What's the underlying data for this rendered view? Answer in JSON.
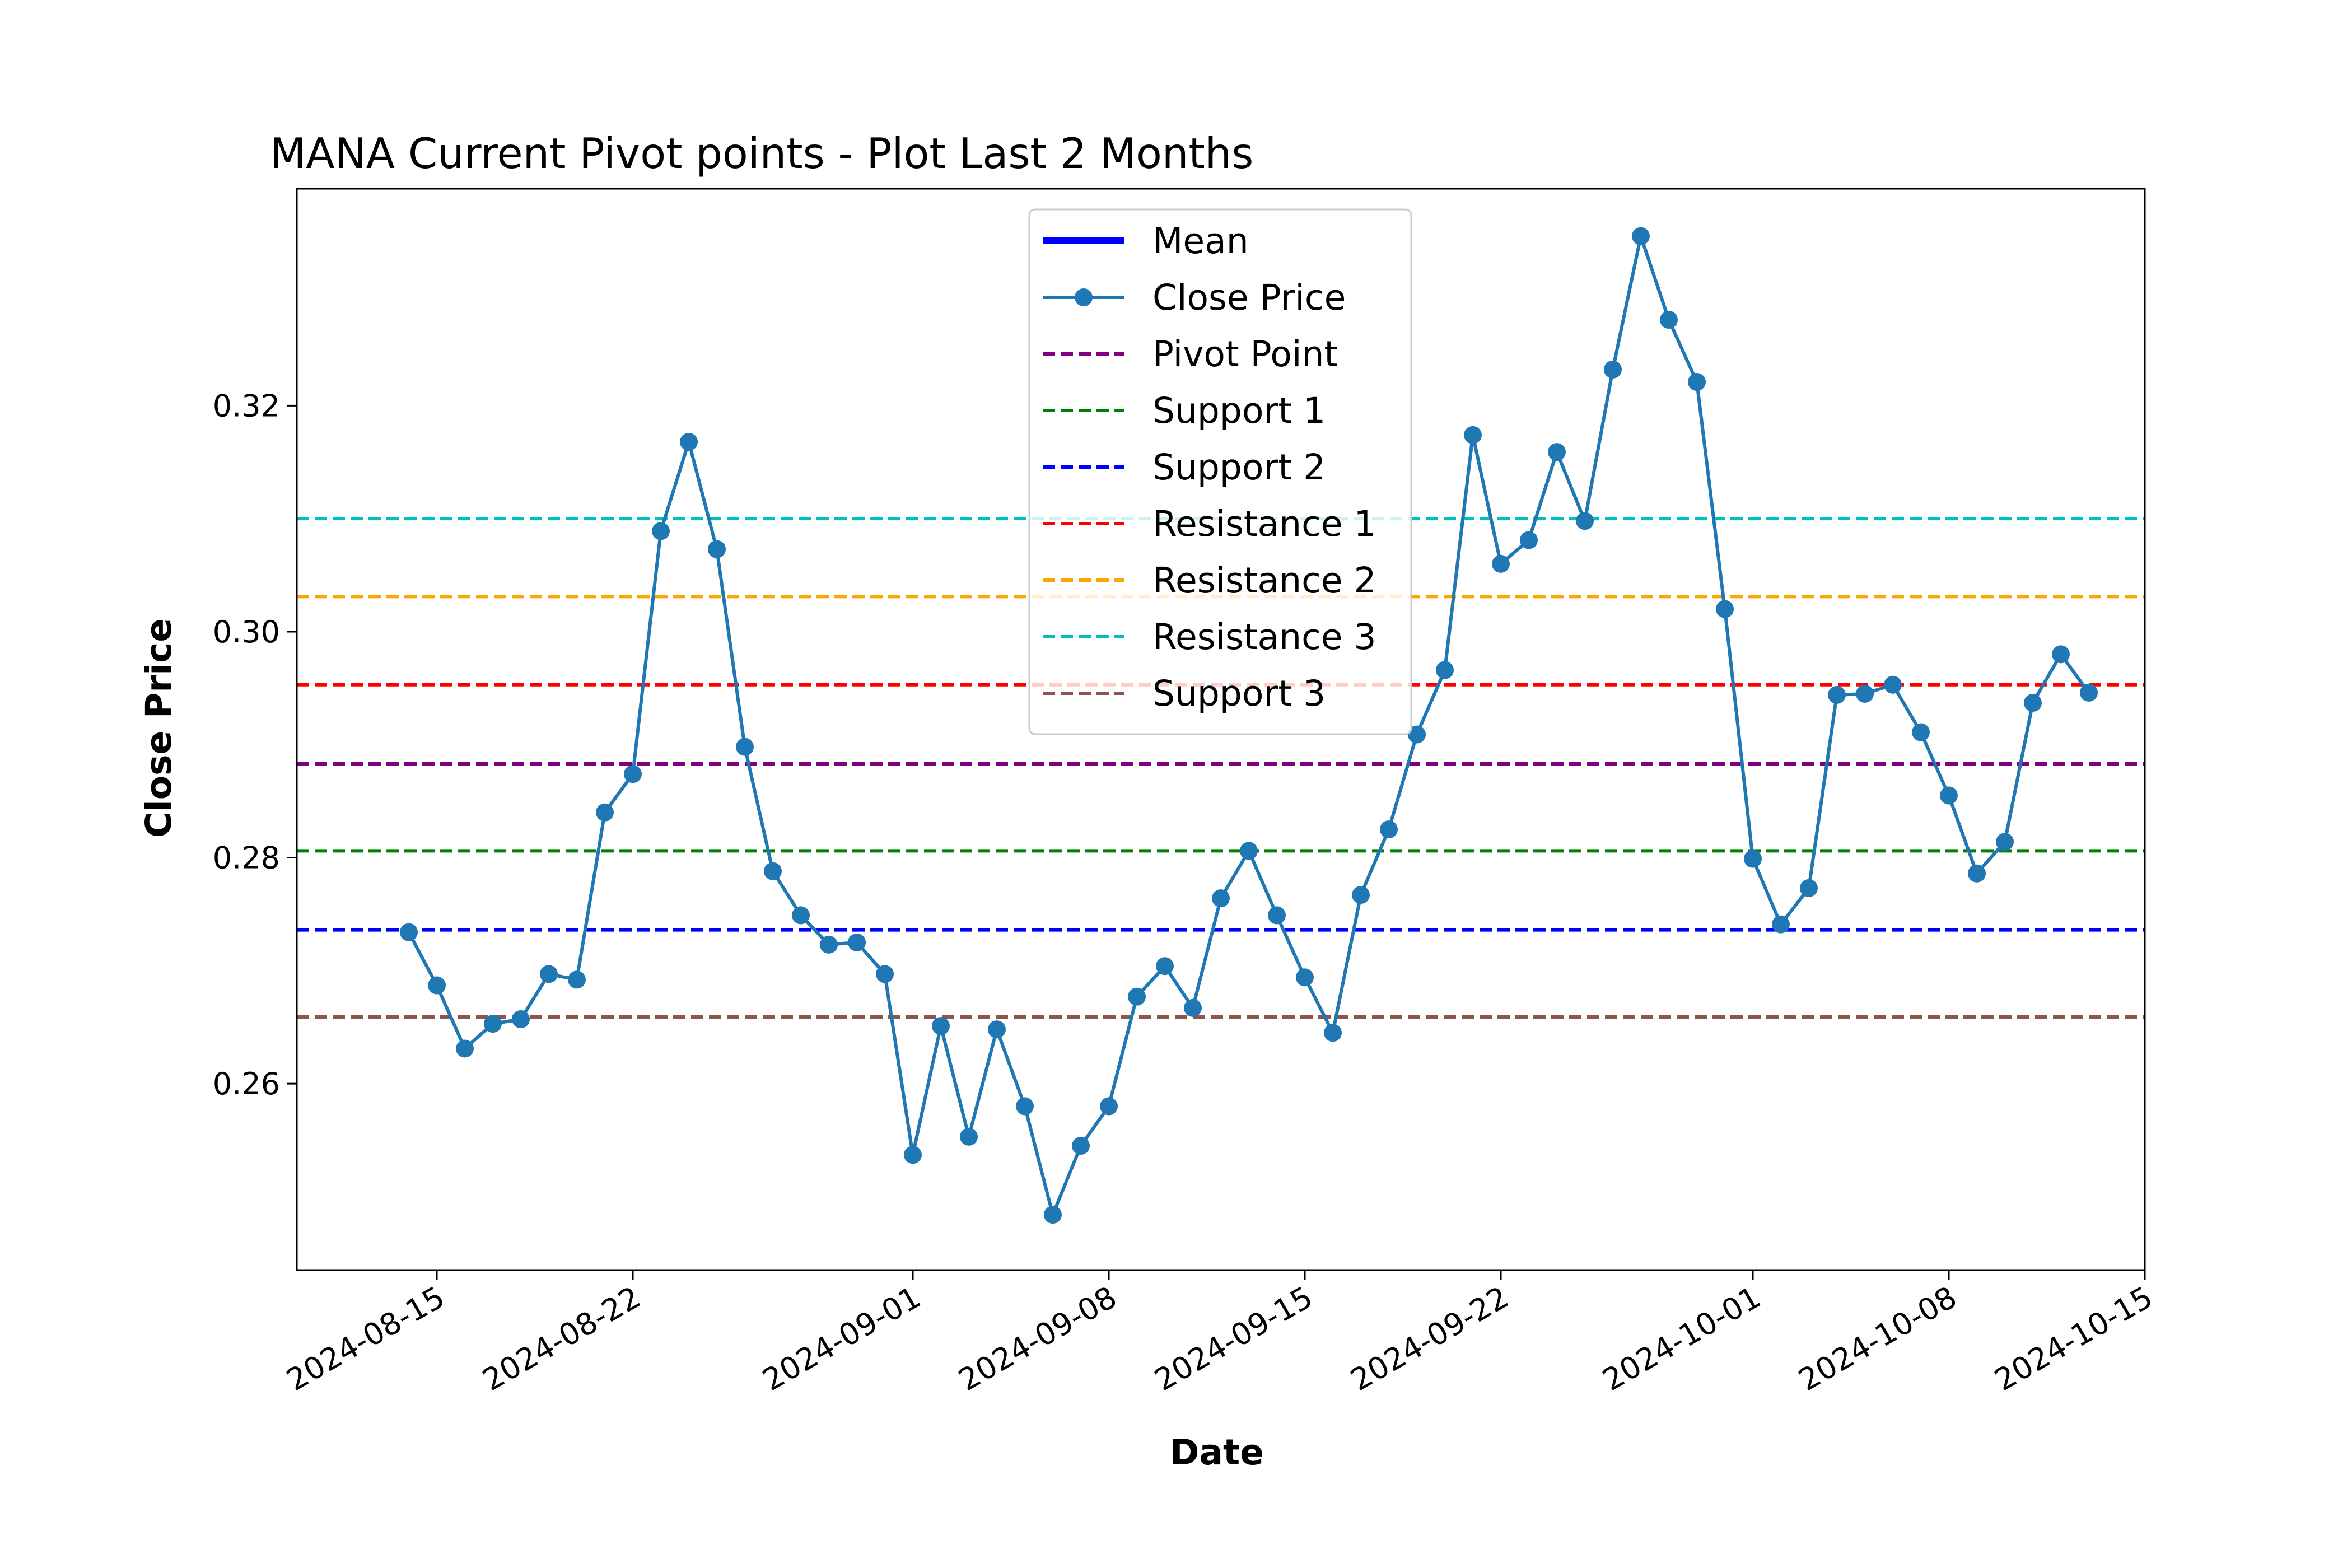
{
  "chart_data": {
    "type": "line",
    "title": "MANA Current Pivot points - Plot Last 2 Months",
    "xlabel": "Date",
    "ylabel": "Close Price",
    "xlim": [
      "2024-08-10",
      "2024-10-15"
    ],
    "ylim": [
      0.2435,
      0.3392
    ],
    "grid": false,
    "legend_position": "upper center",
    "x_ticks": [
      "2024-08-15",
      "2024-08-22",
      "2024-09-01",
      "2024-09-08",
      "2024-09-15",
      "2024-09-22",
      "2024-10-01",
      "2024-10-08",
      "2024-10-15"
    ],
    "y_ticks": [
      0.26,
      0.28,
      0.3,
      0.32
    ],
    "y_tick_labels": [
      "0.26",
      "0.28",
      "0.30",
      "0.32"
    ],
    "series": [
      {
        "name": "Mean",
        "color": "#0000ff",
        "style": "solid-thick",
        "values": []
      },
      {
        "name": "Close Price",
        "color": "#1f77b4",
        "style": "line-marker",
        "x": [
          "2024-08-14",
          "2024-08-15",
          "2024-08-16",
          "2024-08-17",
          "2024-08-18",
          "2024-08-19",
          "2024-08-20",
          "2024-08-21",
          "2024-08-22",
          "2024-08-23",
          "2024-08-24",
          "2024-08-25",
          "2024-08-26",
          "2024-08-27",
          "2024-08-28",
          "2024-08-29",
          "2024-08-30",
          "2024-08-31",
          "2024-09-01",
          "2024-09-02",
          "2024-09-03",
          "2024-09-04",
          "2024-09-05",
          "2024-09-06",
          "2024-09-07",
          "2024-09-08",
          "2024-09-09",
          "2024-09-10",
          "2024-09-11",
          "2024-09-12",
          "2024-09-13",
          "2024-09-14",
          "2024-09-15",
          "2024-09-16",
          "2024-09-17",
          "2024-09-18",
          "2024-09-19",
          "2024-09-20",
          "2024-09-21",
          "2024-09-22",
          "2024-09-23",
          "2024-09-24",
          "2024-09-25",
          "2024-09-26",
          "2024-09-27",
          "2024-09-28",
          "2024-09-29",
          "2024-09-30",
          "2024-10-01",
          "2024-10-02",
          "2024-10-03",
          "2024-10-04",
          "2024-10-05",
          "2024-10-06",
          "2024-10-07",
          "2024-10-08",
          "2024-10-09",
          "2024-10-10",
          "2024-10-11",
          "2024-10-12",
          "2024-10-13"
        ],
        "values": [
          0.2734,
          0.2687,
          0.2631,
          0.2653,
          0.2657,
          0.2697,
          0.2692,
          0.284,
          0.2874,
          0.3089,
          0.3168,
          0.3073,
          0.2898,
          0.2788,
          0.2749,
          0.2723,
          0.2725,
          0.2697,
          0.2537,
          0.2651,
          0.2553,
          0.2648,
          0.258,
          0.2484,
          0.2545,
          0.258,
          0.2677,
          0.2704,
          0.2667,
          0.2764,
          0.2806,
          0.2749,
          0.2694,
          0.2645,
          0.2767,
          0.2825,
          0.2909,
          0.2966,
          0.3174,
          0.306,
          0.3081,
          0.3159,
          0.3098,
          0.3232,
          0.335,
          0.3276,
          0.3221,
          0.302,
          0.2799,
          0.2741,
          0.2773,
          0.2944,
          0.2945,
          0.2953,
          0.2911,
          0.2855,
          0.2786,
          0.2814,
          0.2937,
          0.298,
          0.2946
        ]
      },
      {
        "name": "Pivot Point",
        "color": "#800080",
        "style": "dashed",
        "value": 0.2883
      },
      {
        "name": "Support 1",
        "color": "#008000",
        "style": "dashed",
        "value": 0.2806
      },
      {
        "name": "Support 2",
        "color": "#0000ff",
        "style": "dashed",
        "value": 0.2736
      },
      {
        "name": "Resistance 1",
        "color": "#ff0000",
        "style": "dashed",
        "value": 0.2953
      },
      {
        "name": "Resistance 2",
        "color": "#ffa500",
        "style": "dashed",
        "value": 0.3031
      },
      {
        "name": "Resistance 3",
        "color": "#00bfbf",
        "style": "dashed",
        "value": 0.31
      },
      {
        "name": "Support 3",
        "color": "#8c564b",
        "style": "dashed",
        "value": 0.2659
      }
    ]
  }
}
